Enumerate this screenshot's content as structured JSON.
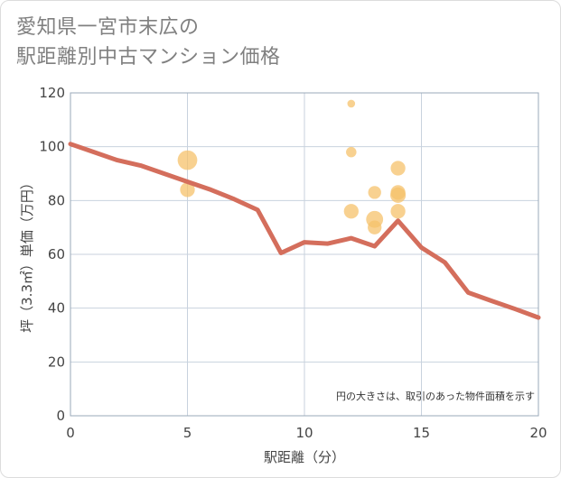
{
  "chart_data": {
    "type": "scatter",
    "title_lines": [
      "愛知県一宮市末広の",
      "駅距離別中古マンション価格"
    ],
    "xlabel": "駅距離（分）",
    "ylabel": "坪（3.3㎡）単価（万円）",
    "xlim": [
      0,
      20
    ],
    "ylim": [
      0,
      120
    ],
    "x_ticks": [
      0,
      5,
      10,
      15,
      20
    ],
    "y_ticks": [
      0,
      20,
      40,
      60,
      80,
      100,
      120
    ],
    "grid": true,
    "note": "円の大きさは、取引のあった物件面積を示す",
    "colors": {
      "bubble": "#f5c26b",
      "line": "#d46e5c",
      "grid": "#c8d2de",
      "axis": "#9aa8b8"
    },
    "bubbles": [
      {
        "x": 5,
        "y": 95,
        "size": 3.2
      },
      {
        "x": 5,
        "y": 84,
        "size": 1.8
      },
      {
        "x": 12,
        "y": 116,
        "size": 0.5
      },
      {
        "x": 12,
        "y": 98,
        "size": 0.9
      },
      {
        "x": 12,
        "y": 76,
        "size": 1.8
      },
      {
        "x": 13,
        "y": 83,
        "size": 1.4
      },
      {
        "x": 13,
        "y": 73,
        "size": 2.4
      },
      {
        "x": 13,
        "y": 70,
        "size": 1.6
      },
      {
        "x": 14,
        "y": 92,
        "size": 1.8
      },
      {
        "x": 14,
        "y": 83,
        "size": 1.8
      },
      {
        "x": 14,
        "y": 82,
        "size": 2.0
      },
      {
        "x": 14,
        "y": 76,
        "size": 1.8
      }
    ],
    "series": [
      {
        "name": "trend",
        "x": [
          0,
          1,
          2,
          3,
          4,
          5,
          6,
          7,
          8,
          9,
          10,
          11,
          12,
          13,
          14,
          15,
          16,
          17,
          18,
          19,
          20
        ],
        "values": [
          101,
          98,
          95,
          93,
          90,
          87,
          84,
          80.5,
          76.5,
          60.5,
          64.5,
          64,
          66,
          63,
          72.5,
          62.5,
          57,
          45.8,
          42.7,
          39.7,
          36.5
        ]
      }
    ]
  }
}
